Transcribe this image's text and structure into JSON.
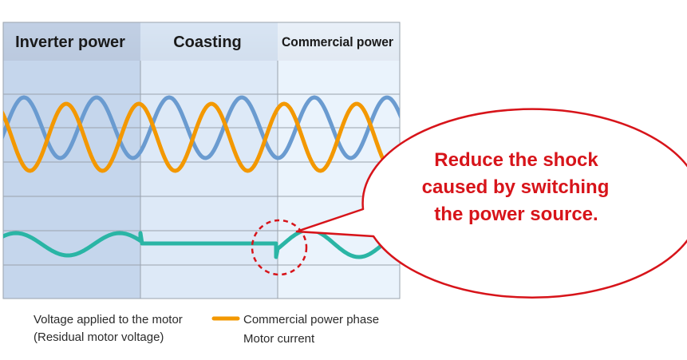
{
  "phases": [
    {
      "label": "Inverter power",
      "color": "#c5d6ec"
    },
    {
      "label": "Coasting",
      "color": "#dde9f7"
    },
    {
      "label": "Commercial power",
      "color": "#eaf3fc"
    }
  ],
  "header_gradient": [
    "#f2f4f7",
    "#c7cbd3"
  ],
  "series": [
    {
      "name": "Voltage applied to the motor (Residual motor voltage)",
      "color": "#6a9bd0"
    },
    {
      "name": "Commercial power phase",
      "color": "#f39800"
    },
    {
      "name": "Motor current",
      "color": "#2ab5a5"
    }
  ],
  "legend": {
    "voltage_line1": "Voltage applied to the motor",
    "voltage_line2": "(Residual motor voltage)",
    "commercial": "Commercial power phase",
    "current": "Motor current"
  },
  "callout": {
    "lines": [
      "Reduce the shock",
      "caused by switching",
      "the power source."
    ],
    "text_color": "#d7141a",
    "border_color": "#d7141a"
  }
}
